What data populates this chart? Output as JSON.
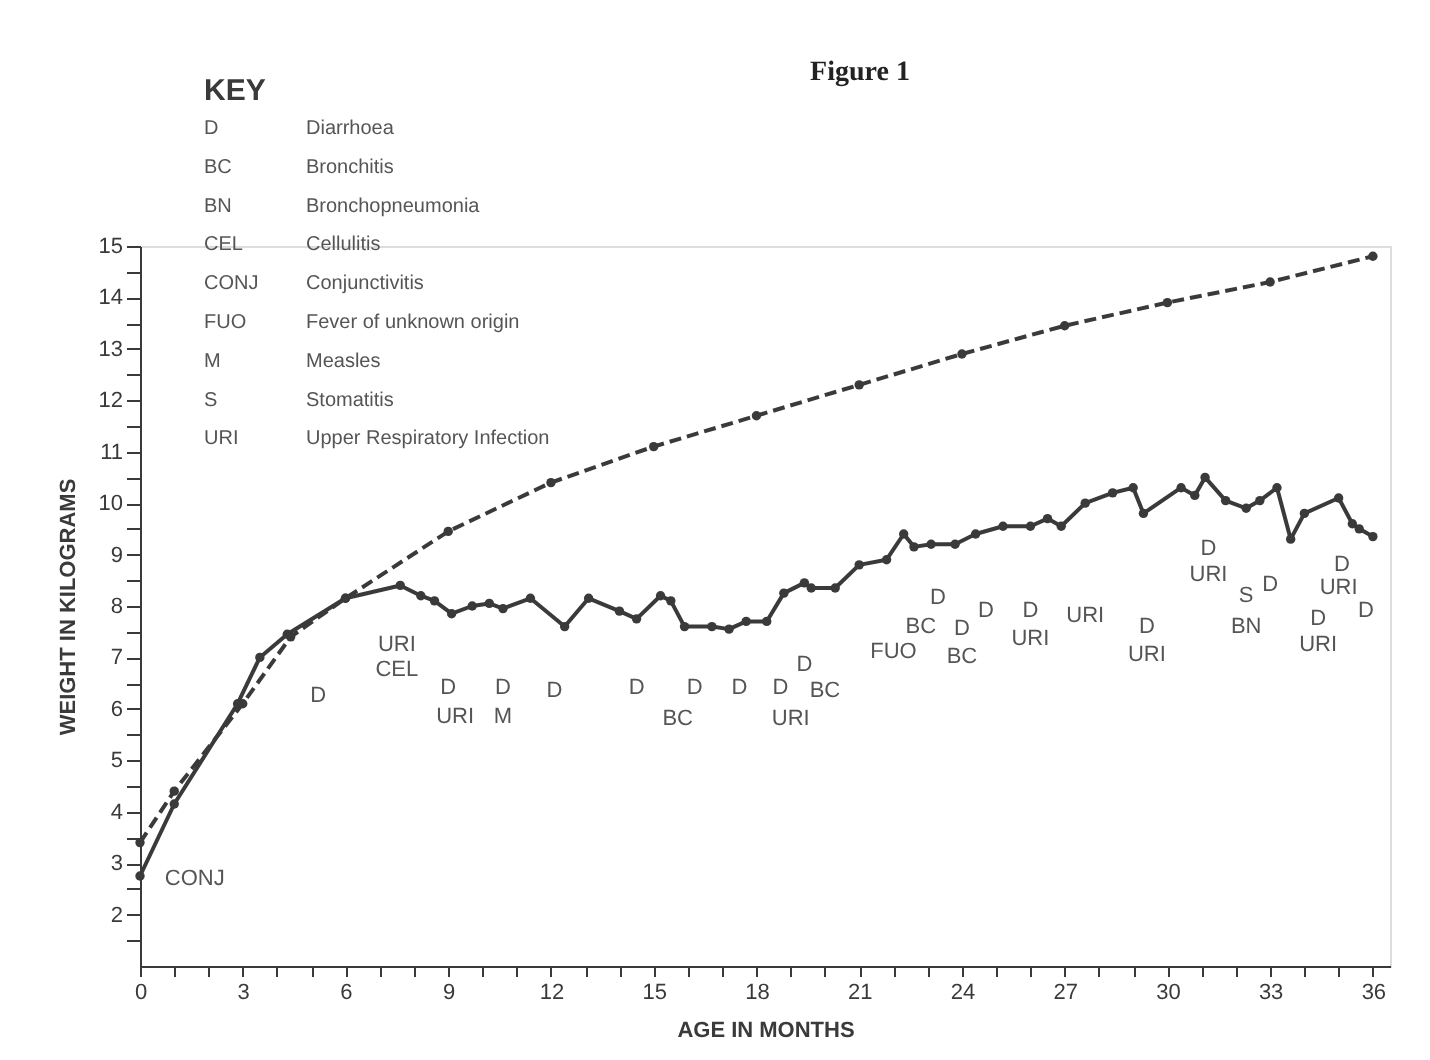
{
  "chart_data": {
    "type": "line",
    "title": "Figure 1",
    "xlabel": "AGE IN MONTHS",
    "ylabel": "WEIGHT IN KILOGRAMS",
    "xlim": [
      0,
      36.5
    ],
    "ylim": [
      1,
      15
    ],
    "xticks": [
      0,
      {
        "value": 1,
        "label": null
      },
      {
        "value": 2,
        "label": null
      },
      3,
      {
        "value": 4,
        "label": null
      },
      {
        "value": 5,
        "label": null
      },
      6,
      {
        "value": 7,
        "label": null
      },
      {
        "value": 8,
        "label": null
      },
      9,
      {
        "value": 10,
        "label": null
      },
      {
        "value": 11,
        "label": null
      },
      12,
      {
        "value": 13,
        "label": null
      },
      {
        "value": 14,
        "label": null
      },
      15,
      {
        "value": 16,
        "label": null
      },
      {
        "value": 17,
        "label": null
      },
      18,
      {
        "value": 19,
        "label": null
      },
      {
        "value": 20,
        "label": null
      },
      21,
      {
        "value": 22,
        "label": null
      },
      {
        "value": 23,
        "label": null
      },
      24,
      {
        "value": 25,
        "label": null
      },
      {
        "value": 26,
        "label": null
      },
      27,
      {
        "value": 28,
        "label": null
      },
      {
        "value": 29,
        "label": null
      },
      30,
      {
        "value": 31,
        "label": null
      },
      {
        "value": 32,
        "label": null
      },
      33,
      {
        "value": 34,
        "label": null
      },
      {
        "value": 35,
        "label": null
      },
      36
    ],
    "yticks": [
      {
        "value": 1.5,
        "label": null
      },
      2,
      {
        "value": 2.5,
        "label": null
      },
      3,
      {
        "value": 3.5,
        "label": null
      },
      4,
      {
        "value": 4.5,
        "label": null
      },
      5,
      {
        "value": 5.5,
        "label": null
      },
      6,
      {
        "value": 6.5,
        "label": null
      },
      7,
      {
        "value": 7.5,
        "label": null
      },
      8,
      {
        "value": 8.5,
        "label": null
      },
      9,
      {
        "value": 9.5,
        "label": null
      },
      10,
      {
        "value": 10.5,
        "label": null
      },
      11,
      {
        "value": 11.5,
        "label": null
      },
      12,
      {
        "value": 12.5,
        "label": null
      },
      13,
      {
        "value": 13.5,
        "label": null
      },
      14,
      {
        "value": 14.5,
        "label": null
      },
      15
    ],
    "grid": false,
    "marker": "circle",
    "series": [
      {
        "color": "#3a3a3a",
        "line_style": "dashed",
        "x": [
          0,
          1,
          3,
          4.4,
          6,
          9,
          12,
          15,
          18,
          21,
          24,
          27,
          30,
          33,
          36
        ],
        "values": [
          3.4,
          4.4,
          6.1,
          7.4,
          8.15,
          9.45,
          10.4,
          11.1,
          11.7,
          12.3,
          12.9,
          13.45,
          13.9,
          14.3,
          14.8
        ]
      },
      {
        "color": "#3a3a3a",
        "line_style": "solid",
        "x": [
          0,
          1,
          2.85,
          3.5,
          4.3,
          6,
          7.6,
          8.2,
          8.6,
          9.1,
          9.7,
          10.2,
          10.6,
          11.4,
          12.4,
          13.1,
          14,
          14.5,
          15.2,
          15.5,
          15.9,
          16.7,
          17.2,
          17.7,
          18.3,
          18.8,
          19.4,
          19.6,
          20.3,
          21,
          21.8,
          22.3,
          22.6,
          23.1,
          23.8,
          24.4,
          25.2,
          26,
          26.5,
          26.9,
          27.6,
          28.4,
          29,
          29.3,
          30.4,
          30.8,
          31.1,
          31.7,
          32.3,
          32.7,
          33.2,
          33.6,
          34,
          35,
          35.4,
          35.6,
          36
        ],
        "values": [
          2.75,
          4.15,
          6.1,
          7,
          7.45,
          8.15,
          8.4,
          8.2,
          8.1,
          7.85,
          8,
          8.05,
          7.95,
          8.15,
          7.6,
          8.15,
          7.9,
          7.75,
          8.2,
          8.1,
          7.6,
          7.6,
          7.55,
          7.7,
          7.7,
          8.25,
          8.45,
          8.35,
          8.35,
          8.8,
          8.9,
          9.4,
          9.15,
          9.2,
          9.2,
          9.4,
          9.55,
          9.55,
          9.7,
          9.55,
          10,
          10.2,
          10.3,
          9.8,
          10.3,
          10.15,
          10.5,
          10.05,
          9.9,
          10.05,
          10.3,
          9.3,
          9.8,
          10.1,
          9.6,
          9.5,
          9.35
        ]
      }
    ],
    "annotations": [
      "KEY",
      "D",
      "Diarrhoea",
      "BC",
      "Bronchitis",
      "BN",
      "Bronchopneumonia",
      "CEL",
      "Cellulitis",
      "CONJ",
      "Conjunctivitis",
      "FUO",
      "Fever of unknown origin",
      "M",
      "Measles",
      "S",
      "Stomatitis",
      "URI",
      "Upper Respiratory Infection",
      "CONJ",
      "D",
      "URI",
      "CEL",
      "D",
      "URI",
      "D",
      "M",
      "D",
      "D",
      "D",
      "BC",
      "D",
      "D",
      "URI",
      "D",
      "BC",
      "FUO",
      "D",
      "BC",
      "D",
      "BC",
      "D",
      "D",
      "URI",
      "URI",
      "D",
      "URI",
      "D",
      "URI",
      "S",
      "D",
      "BN",
      "D",
      "URI",
      "D",
      "URI",
      "D"
    ]
  }
}
